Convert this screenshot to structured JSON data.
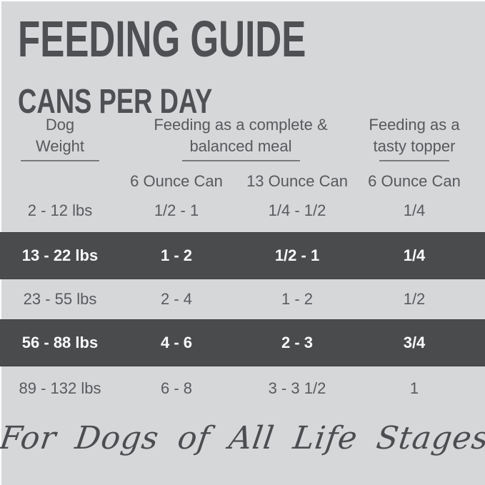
{
  "header": {
    "title": "FEEDING GUIDE",
    "subtitle": "CANS PER DAY"
  },
  "table": {
    "column_groups": [
      {
        "line1": "Dog",
        "line2": "Weight"
      },
      {
        "line1": "Feeding as a complete &",
        "line2": "balanced meal"
      },
      {
        "line1": "Feeding as a",
        "line2": "tasty topper"
      }
    ],
    "sub_headers": [
      "6 Ounce Can",
      "13 Ounce Can",
      "6 Ounce Can"
    ],
    "rows": [
      {
        "highlighted": false,
        "cells": [
          "2 - 12 lbs",
          "1/2 - 1",
          "1/4 - 1/2",
          "1/4"
        ]
      },
      {
        "highlighted": true,
        "cells": [
          "13 - 22 lbs",
          "1 - 2",
          "1/2 - 1",
          "1/4"
        ]
      },
      {
        "highlighted": false,
        "cells": [
          "23 - 55 lbs",
          "2 - 4",
          "1 - 2",
          "1/2"
        ]
      },
      {
        "highlighted": true,
        "cells": [
          "56 - 88 lbs",
          "4 - 6",
          "2 - 3",
          "3/4"
        ]
      },
      {
        "highlighted": false,
        "cells": [
          "89 - 132 lbs",
          "6 - 8",
          "3 - 3 1/2",
          "1"
        ]
      }
    ]
  },
  "footer": {
    "tagline": "For Dogs of All Life Stages"
  },
  "colors": {
    "background": "#d6d7d9",
    "highlight_band": "#4a4b4d",
    "title_text": "#4f5053",
    "body_text": "#58595c",
    "band_text": "#fafafa",
    "underline": "#797a7c"
  },
  "chart_data": {
    "type": "table",
    "title": "FEEDING GUIDE — CANS PER DAY",
    "column_groups": [
      "Dog Weight",
      "Feeding as a complete & balanced meal",
      "Feeding as a tasty topper"
    ],
    "columns": [
      "Dog Weight",
      "Complete meal — 6 Ounce Can",
      "Complete meal — 13 Ounce Can",
      "Tasty topper — 6 Ounce Can"
    ],
    "rows": [
      [
        "2 - 12 lbs",
        "1/2 - 1",
        "1/4 - 1/2",
        "1/4"
      ],
      [
        "13 - 22 lbs",
        "1 - 2",
        "1/2 - 1",
        "1/4"
      ],
      [
        "23 - 55 lbs",
        "2 - 4",
        "1 - 2",
        "1/2"
      ],
      [
        "56 - 88 lbs",
        "4 - 6",
        "2 - 3",
        "3/4"
      ],
      [
        "89 - 132 lbs",
        "6 - 8",
        "3 - 3 1/2",
        "1"
      ]
    ],
    "highlighted_rows": [
      1,
      3
    ],
    "annotation": "For Dogs of All Life Stages"
  }
}
